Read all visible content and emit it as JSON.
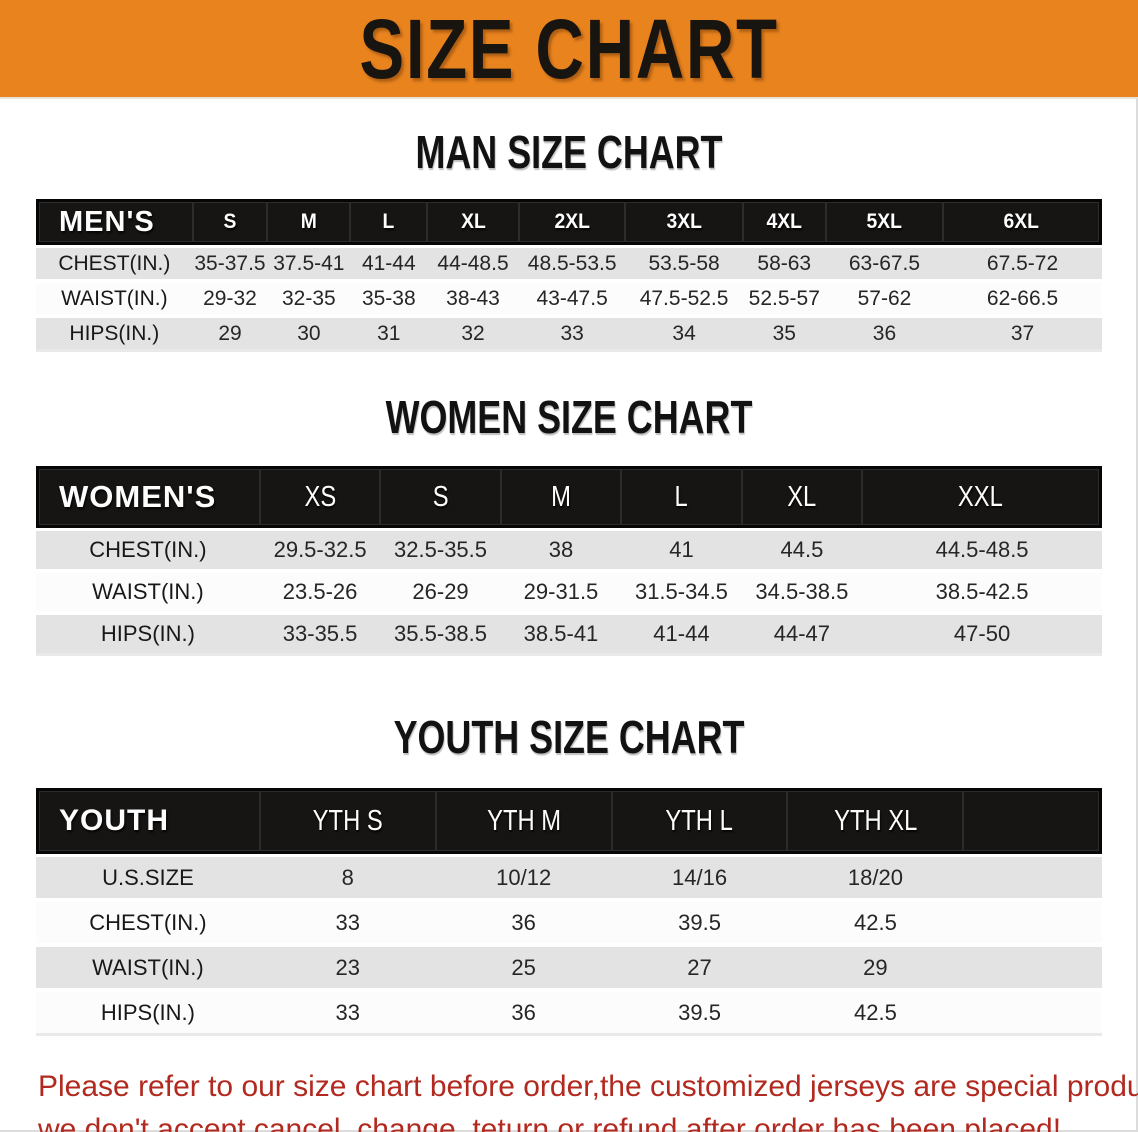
{
  "banner": {
    "title": "SIZE CHART",
    "bg_color": "#e8831e"
  },
  "sections": [
    {
      "heading": "MAN SIZE CHART",
      "corner": "MEN'S",
      "columns": [
        "S",
        "M",
        "L",
        "XL",
        "2XL",
        "3XL",
        "4XL",
        "5XL",
        "6XL"
      ],
      "rows": [
        {
          "label": "CHEST(IN.)",
          "values": [
            "35-37.5",
            "37.5-41",
            "41-44",
            "44-48.5",
            "48.5-53.5",
            "53.5-58",
            "58-63",
            "63-67.5",
            "67.5-72"
          ]
        },
        {
          "label": "WAIST(IN.)",
          "values": [
            "29-32",
            "32-35",
            "35-38",
            "38-43",
            "43-47.5",
            "47.5-52.5",
            "52.5-57",
            "57-62",
            "62-66.5"
          ]
        },
        {
          "label": "HIPS(IN.)",
          "values": [
            "29",
            "30",
            "31",
            "32",
            "33",
            "34",
            "35",
            "36",
            "37"
          ]
        }
      ]
    },
    {
      "heading": "WOMEN SIZE CHART",
      "corner": "WOMEN'S",
      "columns": [
        "XS",
        "S",
        "M",
        "L",
        "XL",
        "XXL"
      ],
      "rows": [
        {
          "label": "CHEST(IN.)",
          "values": [
            "29.5-32.5",
            "32.5-35.5",
            "38",
            "41",
            "44.5",
            "44.5-48.5"
          ]
        },
        {
          "label": "WAIST(IN.)",
          "values": [
            "23.5-26",
            "26-29",
            "29-31.5",
            "31.5-34.5",
            "34.5-38.5",
            "38.5-42.5"
          ]
        },
        {
          "label": "HIPS(IN.)",
          "values": [
            "33-35.5",
            "35.5-38.5",
            "38.5-41",
            "41-44",
            "44-47",
            "47-50"
          ]
        }
      ]
    },
    {
      "heading": "YOUTH SIZE CHART",
      "corner": "YOUTH",
      "columns": [
        "YTH S",
        "YTH M",
        "YTH L",
        "YTH XL"
      ],
      "rows": [
        {
          "label": "U.S.SIZE",
          "values": [
            "8",
            "10/12",
            "14/16",
            "18/20"
          ]
        },
        {
          "label": "CHEST(IN.)",
          "values": [
            "33",
            "36",
            "39.5",
            "42.5"
          ]
        },
        {
          "label": "WAIST(IN.)",
          "values": [
            "23",
            "25",
            "27",
            "29"
          ]
        },
        {
          "label": "HIPS(IN.)",
          "values": [
            "33",
            "36",
            "39.5",
            "42.5"
          ]
        }
      ]
    }
  ],
  "note": {
    "color": "#b2291f",
    "lines": [
      "Please refer to our size chart before order,the customized jerseys are special products,",
      "we don't accept cancel, change, teturn or refund after order has been placed!"
    ]
  }
}
